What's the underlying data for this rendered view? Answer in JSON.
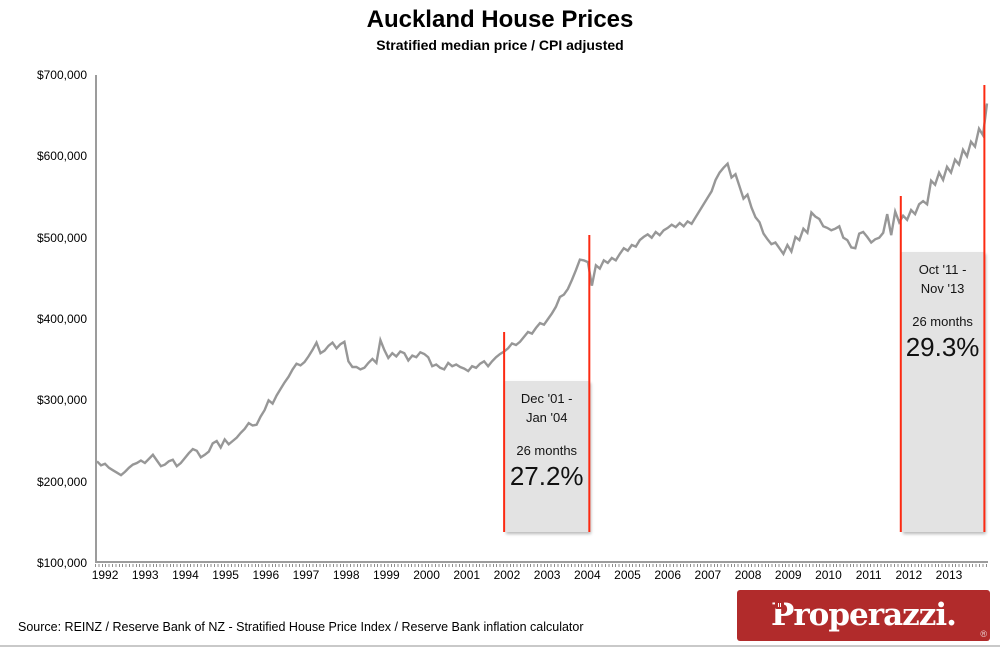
{
  "header": {
    "title": "Auckland House Prices",
    "subtitle": "Stratified median price / CPI adjusted"
  },
  "footer": {
    "source": "Source: REINZ / Reserve Bank of NZ - Stratified House Price Index / Reserve Bank inflation calculator",
    "logo_text": "Properazzi.",
    "logo_registered": "®",
    "logo_bg_color": "#b12b2b"
  },
  "chart_data": {
    "type": "line",
    "title": "Auckland House Prices",
    "subtitle": "Stratified median price / CPI adjusted",
    "series_name": "Auckland stratified median house price, CPI adjusted (NZ$)",
    "line_color": "#979797",
    "highlight_line_color": "#fc2a12",
    "annotation_box_color": "#e3e3e3",
    "grid": "off",
    "legend": "none",
    "x_axis": {
      "min": 1991.75,
      "max": 2013.97,
      "tick_years": [
        1992,
        1993,
        1994,
        1995,
        1996,
        1997,
        1998,
        1999,
        2000,
        2001,
        2002,
        2003,
        2004,
        2005,
        2006,
        2007,
        2008,
        2009,
        2010,
        2011,
        2012,
        2013
      ]
    },
    "y_axis": {
      "min": 100000,
      "max": 700000,
      "tick_step": 100000,
      "tick_labels": [
        "$700,000",
        "$600,000",
        "$500,000",
        "$400,000",
        "$300,000",
        "$200,000",
        "$100,000"
      ]
    },
    "values_unit": "NZD thousands",
    "x_start": 1991.8,
    "x_step_years": 0.0993,
    "values": [
      225,
      220,
      222,
      217,
      214,
      211,
      208,
      212,
      217,
      221,
      223,
      226,
      223,
      228,
      233,
      226,
      219,
      221,
      225,
      227,
      219,
      223,
      229,
      235,
      240,
      238,
      230,
      233,
      237,
      247,
      250,
      242,
      252,
      246,
      250,
      254,
      260,
      265,
      272,
      269,
      270,
      280,
      288,
      300,
      296,
      306,
      314,
      322,
      329,
      338,
      345,
      343,
      347,
      354,
      362,
      371,
      358,
      361,
      367,
      371,
      364,
      369,
      372,
      348,
      341,
      341,
      338,
      340,
      346,
      351,
      346,
      374,
      362,
      352,
      358,
      354,
      360,
      358,
      349,
      355,
      353,
      359,
      357,
      353,
      342,
      344,
      340,
      338,
      346,
      342,
      344,
      341,
      339,
      336,
      342,
      340,
      345,
      348,
      342,
      348,
      353,
      357,
      360,
      364,
      370,
      368,
      372,
      378,
      384,
      382,
      389,
      395,
      393,
      400,
      407,
      415,
      427,
      430,
      437,
      448,
      460,
      473,
      472,
      470,
      441,
      466,
      462,
      472,
      469,
      475,
      472,
      480,
      487,
      484,
      491,
      489,
      497,
      501,
      504,
      500,
      507,
      503,
      509,
      512,
      516,
      513,
      518,
      514,
      520,
      517,
      525,
      533,
      541,
      549,
      557,
      571,
      580,
      586,
      591,
      574,
      578,
      563,
      548,
      553,
      537,
      525,
      519,
      505,
      498,
      492,
      494,
      487,
      480,
      491,
      483,
      501,
      497,
      511,
      506,
      531,
      526,
      523,
      514,
      512,
      509,
      511,
      514,
      500,
      497,
      488,
      487,
      505,
      507,
      501,
      494,
      498,
      500,
      506,
      529,
      503,
      532,
      519,
      527,
      522,
      534,
      529,
      541,
      545,
      541,
      570,
      565,
      580,
      571,
      587,
      580,
      596,
      590,
      608,
      600,
      618,
      612,
      634,
      626,
      665
    ],
    "annotations": [
      {
        "range_line1": "Dec '01 -",
        "range_line2": "Jan '04",
        "duration": "26 months",
        "change": "27.2%",
        "start_date": 2001.93,
        "end_date": 2004.05
      },
      {
        "range_line1": "Oct '11 -",
        "range_line2": "Nov '13",
        "duration": "26 months",
        "change": "29.3%",
        "start_date": 2011.8,
        "end_date": 2013.88
      }
    ]
  }
}
